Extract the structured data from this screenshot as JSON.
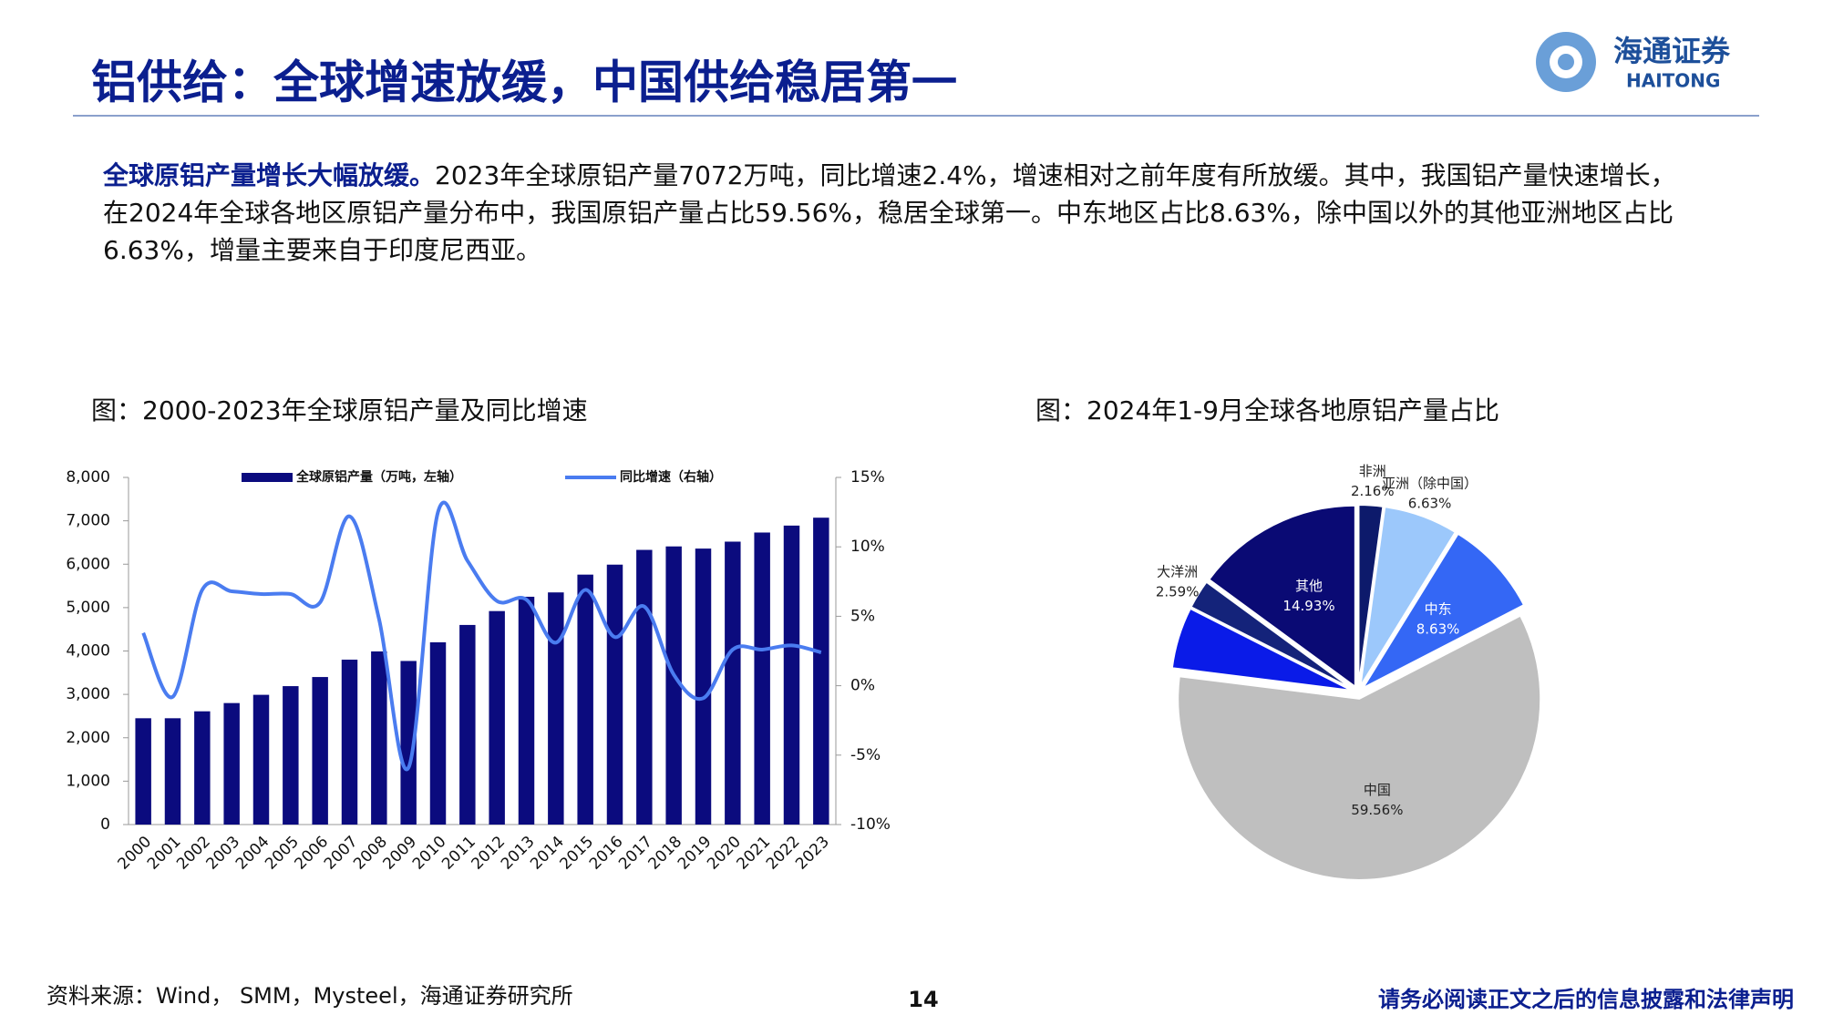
{
  "header": {
    "title": "铝供给：全球增速放缓，中国供给稳居第一",
    "logo_cn": "海通证券",
    "logo_en": "HAITONG"
  },
  "body": {
    "lead": "全球原铝产量增长大幅放缓。",
    "text": "2023年全球原铝产量7072万吨，同比增速2.4%，增速相对之前年度有所放缓。其中，我国铝产量快速增长，在2024年全球各地区原铝产量分布中，我国原铝产量占比59.56%，稳居全球第一。中东地区占比8.63%，除中国以外的其他亚洲地区占比6.63%，增量主要来自于印度尼西亚。"
  },
  "chart_data": [
    {
      "type": "bar",
      "title": "图：2000-2023年全球原铝产量及同比增速",
      "categories": [
        "2000",
        "2001",
        "2002",
        "2003",
        "2004",
        "2005",
        "2006",
        "2007",
        "2008",
        "2009",
        "2010",
        "2011",
        "2012",
        "2013",
        "2014",
        "2015",
        "2016",
        "2017",
        "2018",
        "2019",
        "2020",
        "2021",
        "2022",
        "2023"
      ],
      "series": [
        {
          "name": "全球原铝产量（万吨，左轴）",
          "type": "bar",
          "color": "#0b0b7e",
          "values": [
            2450,
            2450,
            2610,
            2800,
            2990,
            3190,
            3400,
            3800,
            3990,
            3770,
            4200,
            4600,
            4920,
            5250,
            5350,
            5760,
            5990,
            6330,
            6410,
            6360,
            6520,
            6730,
            6890,
            7072
          ]
        },
        {
          "name": "同比增速（右轴）",
          "type": "line",
          "axis": "y2",
          "color": "#4a7cf0",
          "values": [
            3.8,
            -0.8,
            6.9,
            6.8,
            6.6,
            6.6,
            6.0,
            12.2,
            4.8,
            -5.9,
            12.5,
            9.0,
            6.1,
            6.2,
            3.1,
            6.9,
            3.5,
            5.7,
            0.8,
            -0.9,
            2.6,
            2.6,
            2.9,
            2.4
          ]
        }
      ],
      "ylim": [
        0,
        8000
      ],
      "yticks": [
        0,
        {
          "value": 1000,
          "label": "1,000"
        },
        {
          "value": 2000,
          "label": "2,000"
        },
        {
          "value": 3000,
          "label": "3,000"
        },
        {
          "value": 4000,
          "label": "4,000"
        },
        {
          "value": 5000,
          "label": "5,000"
        },
        {
          "value": 6000,
          "label": "6,000"
        },
        {
          "value": 7000,
          "label": "7,000"
        },
        {
          "value": 8000,
          "label": "8,000"
        }
      ],
      "y2lim": [
        -10,
        15
      ],
      "y2ticks": [
        {
          "value": -10,
          "label": "-10%"
        },
        {
          "value": -5,
          "label": "-5%"
        },
        {
          "value": 0,
          "label": "0%"
        },
        {
          "value": 5,
          "label": "5%"
        },
        {
          "value": 10,
          "label": "10%"
        },
        {
          "value": 15,
          "label": "15%"
        }
      ],
      "legend": "top"
    },
    {
      "type": "pie",
      "title": "图：2024年1-9月全球各地原铝产量占比",
      "categories": [
        "非洲",
        "亚洲（除中国）",
        "中东",
        "中国",
        null,
        "大洋洲",
        "其他"
      ],
      "values": [
        2.16,
        6.63,
        8.63,
        59.56,
        5.5,
        2.59,
        14.93
      ],
      "value_labels": [
        "2.16%",
        "6.63%",
        "8.63%",
        "59.56%",
        null,
        "2.59%",
        "14.93%"
      ],
      "colors": [
        "#0d1a6b",
        "#9cc8fb",
        "#3467f5",
        "#bfbfbf",
        "#0a1be8",
        "#14237a",
        "#0a0a74"
      ]
    }
  ],
  "footer": {
    "source": "资料来源：Wind， SMM，Mysteel，海通证券研究所",
    "page": "14",
    "disclaimer": "请务必阅读正文之后的信息披露和法律声明"
  }
}
